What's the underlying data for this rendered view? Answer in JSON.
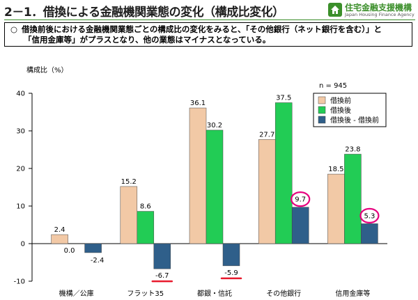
{
  "header": {
    "title": "2－1．借換による金融機関業態の変化（構成比変化）",
    "logo_jp": "住宅金融支援機構",
    "logo_en": "Japan Housing Finance Agency"
  },
  "summary": {
    "bullet": "○",
    "line1": "借換前後における金融機関業態ごとの構成比の変化をみると、「その他銀行（ネット銀行を含む）」と",
    "line2": "「信用金庫等」がプラスとなり、他の業態はマイナスとなっている。"
  },
  "chart_data": {
    "type": "bar",
    "ylabel": "構成比（%）",
    "ylim": [
      -10,
      40
    ],
    "yticks": [
      -10,
      0,
      10,
      20,
      30,
      40
    ],
    "n_label": "n = 945",
    "categories": [
      "機構／公庫",
      "フラット35",
      "都銀・信託",
      "その他銀行",
      "信用金庫等"
    ],
    "series": [
      {
        "name": "借換前",
        "color": "#f2c9a6",
        "values": [
          2.4,
          15.2,
          36.1,
          27.7,
          18.5
        ],
        "labels": [
          "2.4",
          "15.2",
          "36.1",
          "27.7",
          "18.5"
        ]
      },
      {
        "name": "借換後",
        "color": "#22cc55",
        "values": [
          0.0,
          8.6,
          30.2,
          37.5,
          23.8
        ],
        "labels": [
          "0.0",
          "8.6",
          "30.2",
          "37.5",
          "23.8"
        ]
      },
      {
        "name": "借換後 - 借換前",
        "color": "#2f5f8a",
        "values": [
          -2.4,
          -6.7,
          -5.9,
          9.7,
          5.3
        ],
        "labels": [
          "-2.4",
          "-6.7",
          "-5.9",
          "9.7",
          "5.3"
        ]
      }
    ],
    "highlights": {
      "underline": [
        [
          1,
          2
        ],
        [
          2,
          2
        ]
      ],
      "circle": [
        [
          3,
          2
        ],
        [
          4,
          2
        ]
      ],
      "underline_color": "#e8192c",
      "circle_color": "#e6007e"
    },
    "legend_position": "top-right",
    "grid": false
  }
}
